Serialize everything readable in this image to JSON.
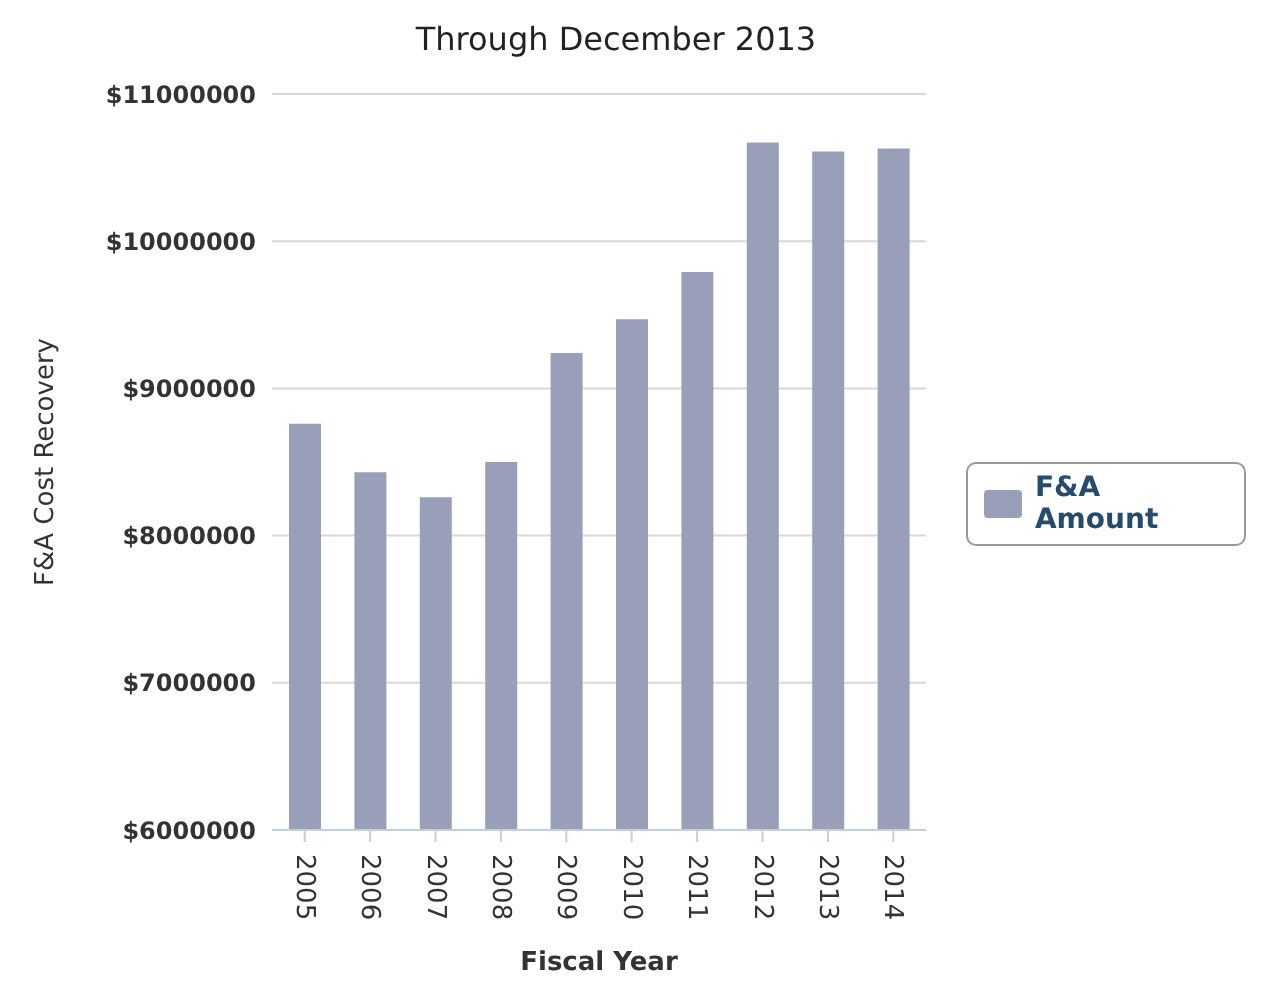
{
  "chart_data": {
    "type": "bar",
    "title": "Through December 2013",
    "xlabel": "Fiscal Year",
    "ylabel": "F&A Cost Recovery",
    "categories": [
      "2005",
      "2006",
      "2007",
      "2008",
      "2009",
      "2010",
      "2011",
      "2012",
      "2013",
      "2014"
    ],
    "series": [
      {
        "name": "F&A Amount",
        "color": "#9a9fb9",
        "values": [
          8760000,
          8430000,
          8260000,
          8500000,
          9240000,
          9470000,
          9790000,
          10670000,
          10610000,
          10630000
        ]
      }
    ],
    "ylim": [
      6000000,
      11000000
    ],
    "yticks": [
      {
        "value": 6000000,
        "label": "$6000000"
      },
      {
        "value": 7000000,
        "label": "$7000000"
      },
      {
        "value": 8000000,
        "label": "$8000000"
      },
      {
        "value": 9000000,
        "label": "$9000000"
      },
      {
        "value": 10000000,
        "label": "$10000000"
      },
      {
        "value": 11000000,
        "label": "$11000000"
      }
    ],
    "grid": "y",
    "legend": "right"
  }
}
